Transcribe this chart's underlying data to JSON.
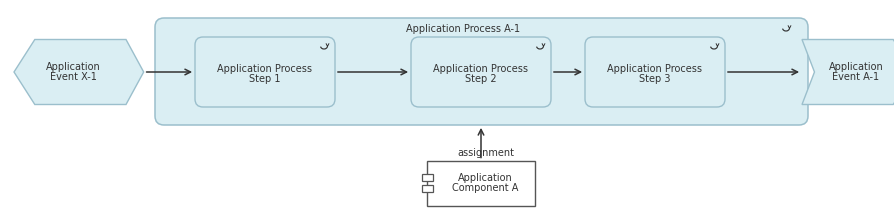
{
  "bg_color": "#ffffff",
  "container_fill": "#daeef3",
  "container_edge": "#9bbfcc",
  "box_fill": "#daeef3",
  "box_edge": "#9bbfcc",
  "event_fill": "#daeef3",
  "event_edge": "#9bbfcc",
  "comp_fill": "#ffffff",
  "comp_edge": "#555555",
  "text_color": "#333333",
  "arrow_color": "#333333",
  "title": "Application Process A-1",
  "ev_left": [
    "Application",
    "Event X-1"
  ],
  "ev_right": [
    "Application",
    "Event A-1"
  ],
  "step1": [
    "Application Process",
    "Step 1"
  ],
  "step2": [
    "Application Process",
    "Step 2"
  ],
  "step3": [
    "Application Process",
    "Step 3"
  ],
  "comp": [
    "Application",
    "Component A"
  ],
  "assign_label": "assignment",
  "fs": 7.0
}
